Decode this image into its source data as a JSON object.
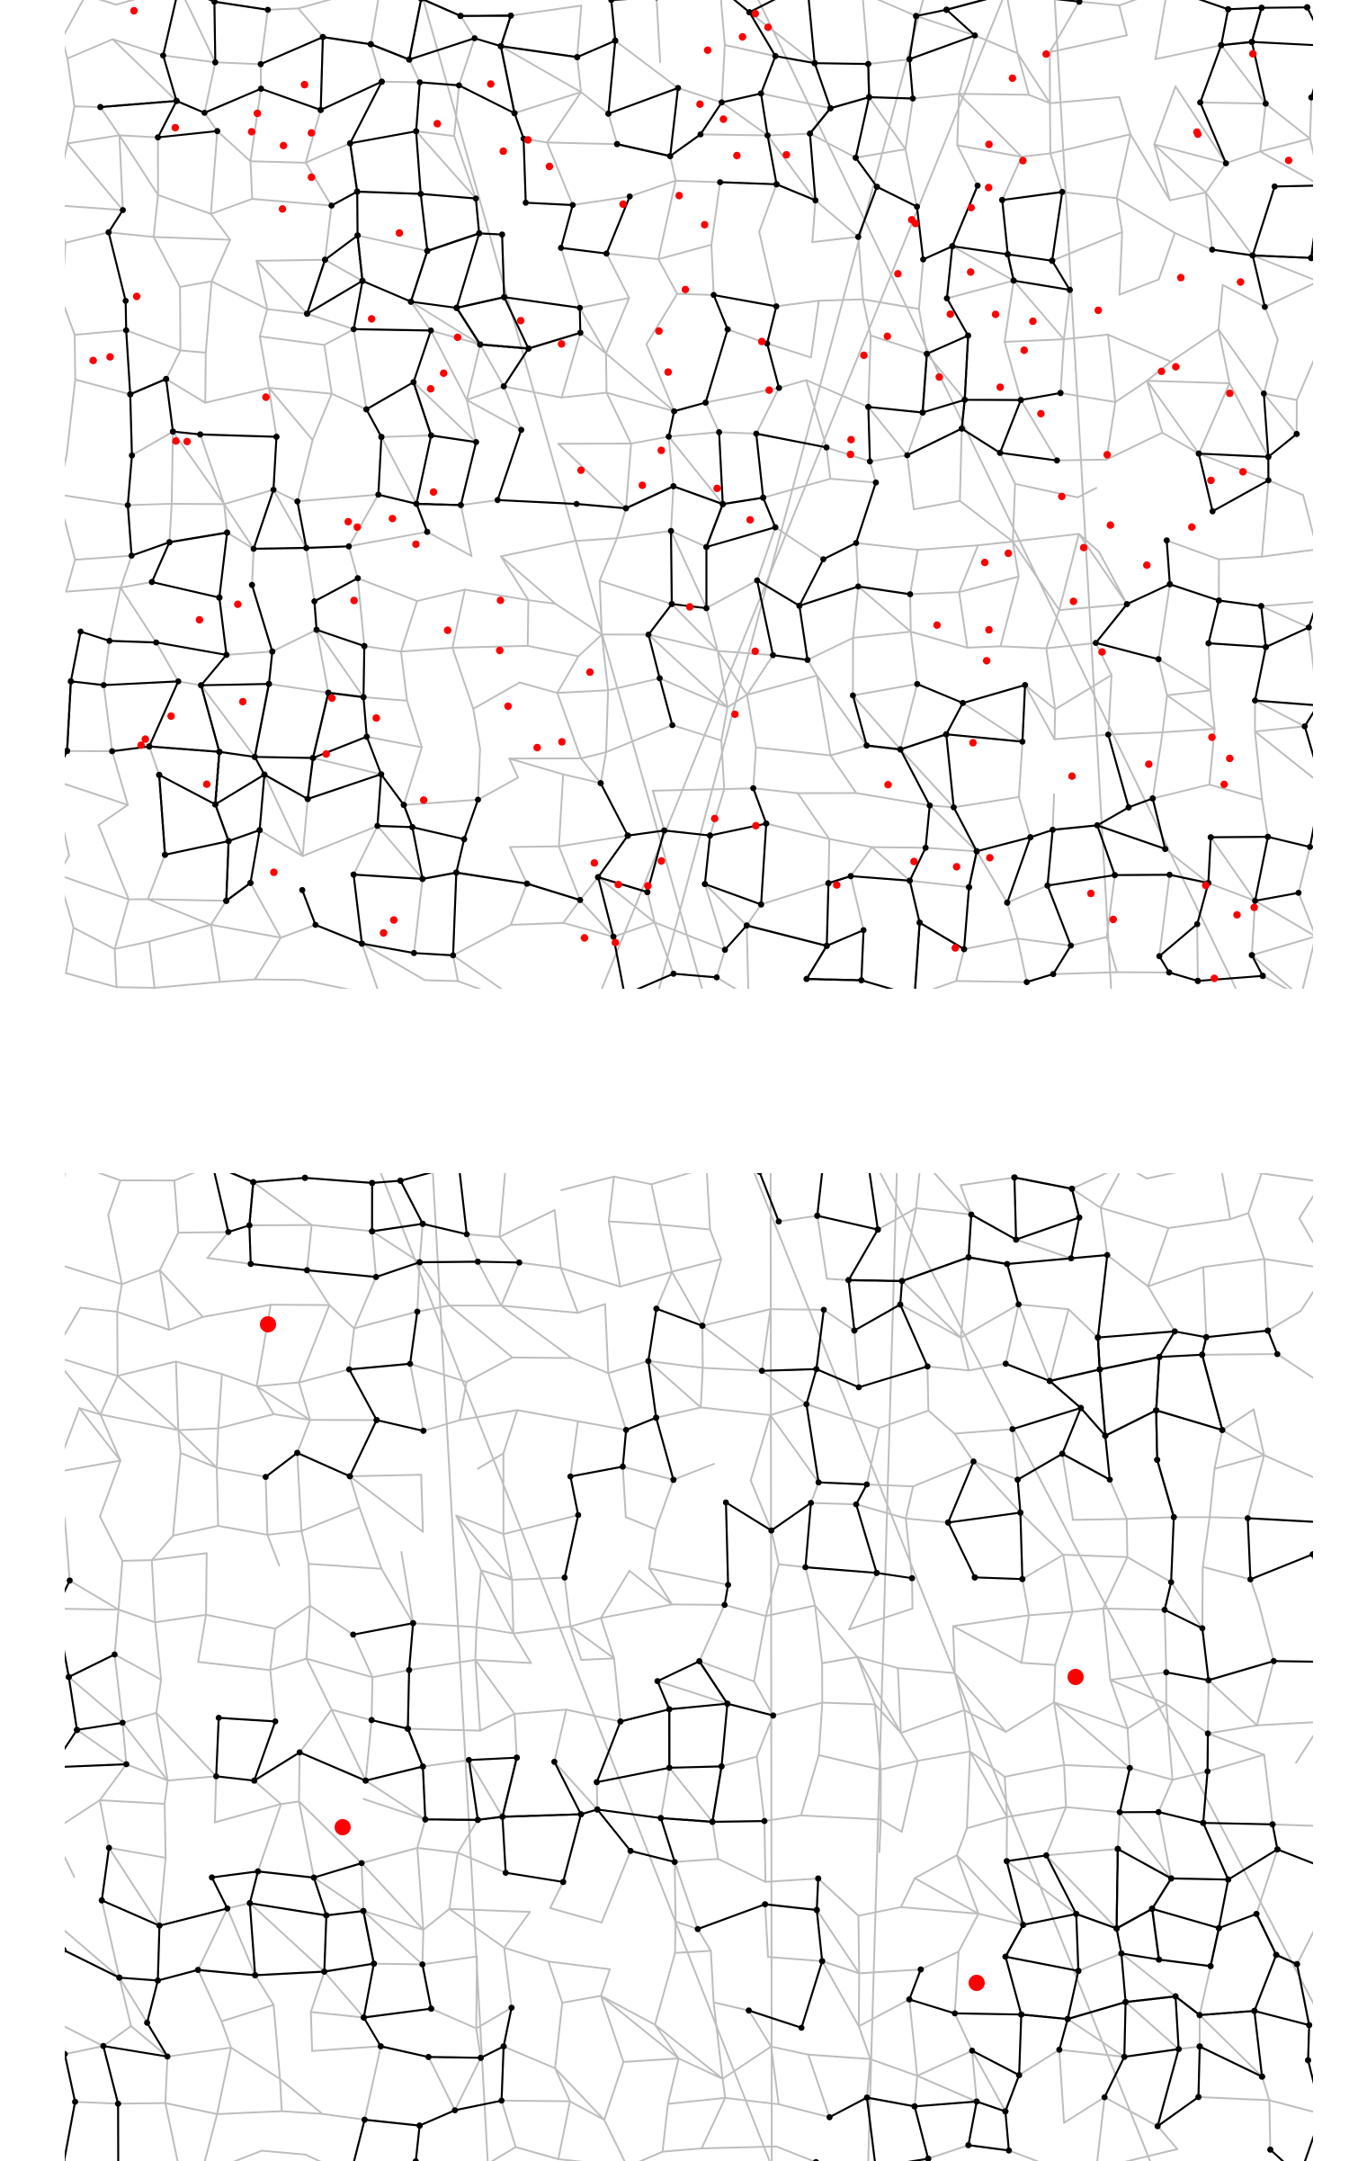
{
  "figure": {
    "panels": [
      {
        "id": "top",
        "description_free": true,
        "facilities": "many-small",
        "colors": {
          "road": "#bdbdbd",
          "edge": "#000000",
          "node": "#000000",
          "facility": "#ff0000"
        }
      },
      {
        "id": "bottom",
        "facilities": "few-large",
        "colors": {
          "road": "#bdbdbd",
          "edge": "#000000",
          "node": "#000000",
          "facility": "#ff0000"
        }
      }
    ]
  }
}
